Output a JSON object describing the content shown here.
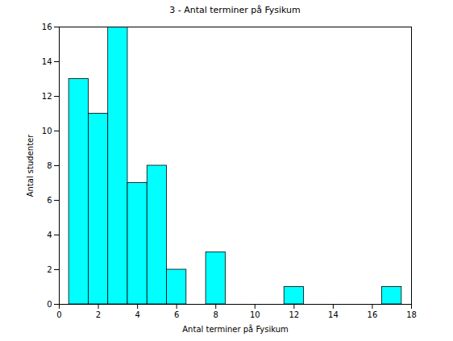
{
  "chart_data": {
    "type": "histogram",
    "title": "3 - Antal terminer på Fysikum",
    "x_label": "Antal terminer på Fysikum",
    "y_label": "Antal studenter",
    "bins": [
      0.5,
      1.5,
      2.5,
      3.5,
      4.5,
      5.5,
      6.5,
      7.5,
      8.5,
      9.5,
      10.5,
      11.5,
      12.5,
      13.5,
      14.5,
      15.5,
      16.5,
      17.5
    ],
    "values": [
      13,
      11,
      16,
      7,
      8,
      2,
      0,
      3,
      0,
      0,
      0,
      1,
      0,
      0,
      0,
      0,
      1
    ],
    "color": "#00ffff",
    "xlim": [
      0,
      18
    ],
    "xticks": [
      0,
      2,
      4,
      6,
      8,
      10,
      12,
      14,
      16,
      18
    ],
    "ylim": [
      0,
      16
    ],
    "yticks": [
      0,
      2,
      4,
      6,
      8,
      10,
      12,
      14,
      16
    ],
    "grid": false
  }
}
